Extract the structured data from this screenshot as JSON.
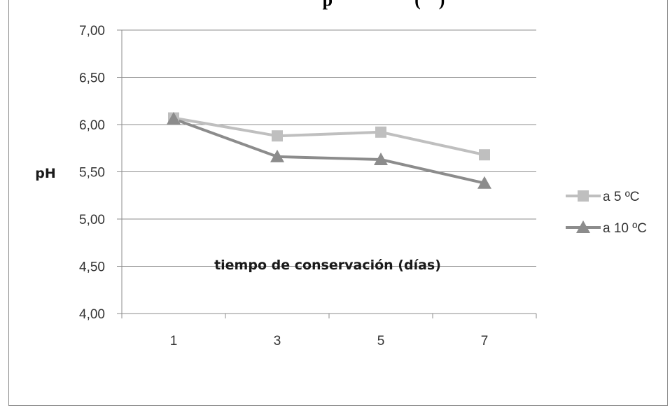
{
  "chart_data": {
    "type": "line",
    "title": "",
    "title_visible_fragment": "p                  (    )",
    "xlabel": "tiempo de conservación (días)",
    "ylabel": "pH",
    "categories": [
      "1",
      "3",
      "5",
      "7"
    ],
    "ylim": [
      4.0,
      7.0
    ],
    "yticks": [
      "4,00",
      "4,50",
      "5,00",
      "5,50",
      "6,00",
      "6,50",
      "7,00"
    ],
    "ytick_values": [
      4.0,
      4.5,
      5.0,
      5.5,
      6.0,
      6.5,
      7.0
    ],
    "grid": true,
    "legend_position": "right",
    "series": [
      {
        "name": "a 5 ºC",
        "values": [
          6.07,
          5.88,
          5.92,
          5.68
        ],
        "color": "#bfbfbf",
        "marker": "square"
      },
      {
        "name": "a 10 ºC",
        "values": [
          6.06,
          5.66,
          5.63,
          5.38
        ],
        "color": "#8c8c8c",
        "marker": "triangle"
      }
    ]
  }
}
